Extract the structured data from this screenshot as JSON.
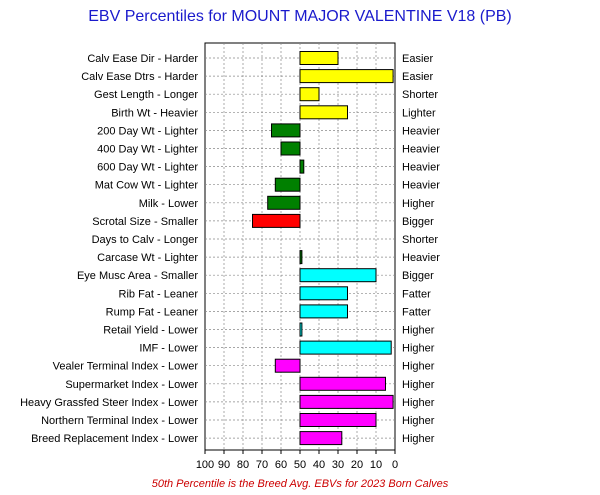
{
  "chart_data": {
    "type": "bar",
    "title": "EBV Percentiles for MOUNT MAJOR VALENTINE V18 (PB)",
    "footer": "50th Percentile is the Breed Avg. EBVs for 2023 Born Calves",
    "x_axis": {
      "reversed": true,
      "xlim": [
        100,
        0
      ],
      "baseline": 50,
      "ticks": [
        "100",
        "90",
        "80",
        "70",
        "60",
        "50",
        "40",
        "30",
        "20",
        "10",
        "0"
      ]
    },
    "grid": true,
    "categories": [
      "Calv Ease Dir - Harder",
      "Calv Ease Dtrs - Harder",
      "Gest Length - Longer",
      "Birth Wt - Heavier",
      "200 Day Wt - Lighter",
      "400 Day Wt - Lighter",
      "600 Day Wt - Lighter",
      "Mat Cow Wt - Lighter",
      "Milk - Lower",
      "Scrotal Size - Smaller",
      "Days to Calv - Longer",
      "Carcase Wt - Lighter",
      "Eye Musc Area - Smaller",
      "Rib Fat - Leaner",
      "Rump Fat - Leaner",
      "Retail Yield - Lower",
      "IMF - Lower",
      "Vealer Terminal Index - Lower",
      "Supermarket Index - Lower",
      "Heavy Grassfed Steer Index - Lower",
      "Northern Terminal Index - Lower",
      "Breed Replacement Index - Lower"
    ],
    "right_labels": [
      "Easier",
      "Easier",
      "Shorter",
      "Lighter",
      "Heavier",
      "Heavier",
      "Heavier",
      "Heavier",
      "Higher",
      "Bigger",
      "Shorter",
      "Heavier",
      "Bigger",
      "Fatter",
      "Fatter",
      "Higher",
      "Higher",
      "Higher",
      "Higher",
      "Higher",
      "Higher",
      "Higher"
    ],
    "values": [
      30,
      1,
      40,
      25,
      65,
      60,
      48,
      63,
      67,
      75,
      null,
      49,
      10,
      25,
      25,
      49,
      2,
      63,
      5,
      1,
      10,
      28
    ],
    "colors": [
      "#ffff00",
      "#ffff00",
      "#ffff00",
      "#ffff00",
      "#008000",
      "#008000",
      "#008000",
      "#008000",
      "#008000",
      "#ff0000",
      "#008000",
      "#008000",
      "#00ffff",
      "#00ffff",
      "#00ffff",
      "#00ffff",
      "#00ffff",
      "#ff00ff",
      "#ff00ff",
      "#ff00ff",
      "#ff00ff",
      "#ff00ff"
    ]
  }
}
